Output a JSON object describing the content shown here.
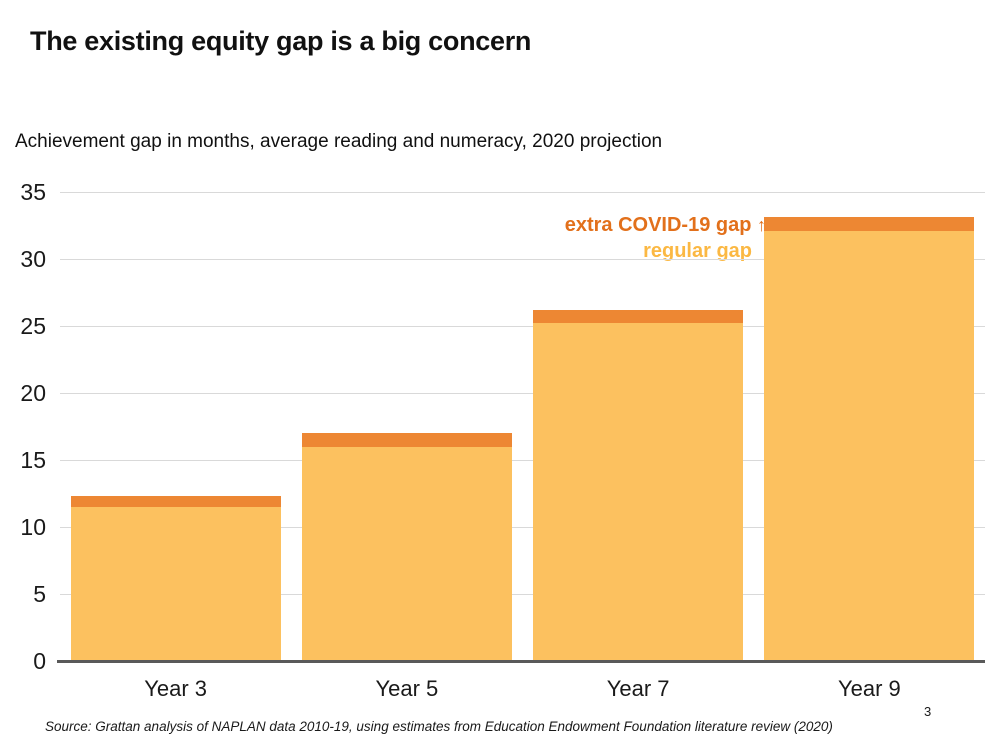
{
  "header": {
    "title": "The existing equity gap is a big concern",
    "subtitle": "Achievement gap in months, average reading and numeracy, 2020 projection"
  },
  "legend": {
    "extra_label": "extra COVID-19 gap",
    "arrow": "↑",
    "regular_label": "regular gap"
  },
  "footer": {
    "source": "Source: Grattan analysis of NAPLAN data 2010-19, using estimates from Education Endowment Foundation literature review (2020)",
    "page_number": "3"
  },
  "colors": {
    "regular_bar": "#fcc15f",
    "extra_bar": "#ed8733",
    "extra_text": "#e2701b",
    "regular_text": "#fbb843",
    "gridline": "#d9d9d9",
    "axis_line": "#595959"
  },
  "chart_data": {
    "type": "bar",
    "stacked": true,
    "title": "The existing equity gap is a big concern",
    "subtitle": "Achievement gap in months, average reading and numeracy, 2020 projection",
    "categories": [
      "Year 3",
      "Year 5",
      "Year 7",
      "Year 9"
    ],
    "series": [
      {
        "name": "regular gap",
        "color": "#fcc15f",
        "values": [
          11.5,
          16.0,
          25.2,
          32.1
        ]
      },
      {
        "name": "extra COVID-19 gap",
        "color": "#ed8733",
        "values": [
          0.8,
          1.0,
          1.0,
          1.0
        ]
      }
    ],
    "totals": [
      12.3,
      17.0,
      26.2,
      33.1
    ],
    "xlabel": "",
    "ylabel": "Achievement gap in months",
    "ylim": [
      0,
      35
    ],
    "yticks": [
      0,
      5,
      10,
      15,
      20,
      25,
      30,
      35
    ],
    "grid": true,
    "legend_position": "inside-top-right"
  }
}
